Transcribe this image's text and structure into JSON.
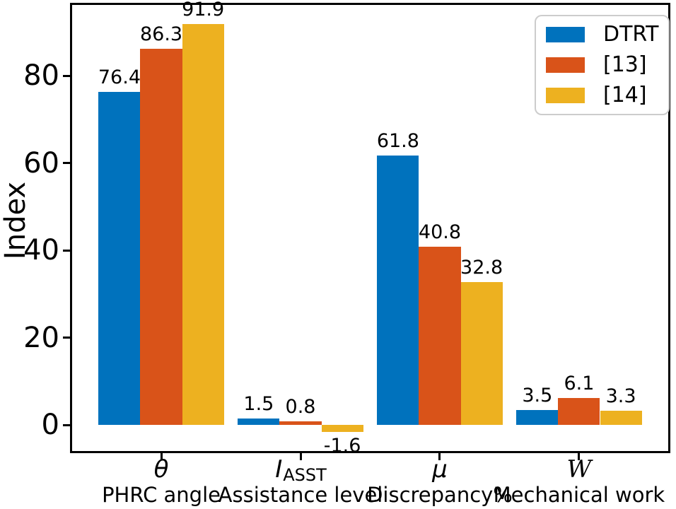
{
  "chart_data": {
    "type": "bar",
    "title": "",
    "ylabel": "Index",
    "xlabel": "",
    "grid": false,
    "legend_position": "upper right",
    "yticks": [
      0,
      20,
      40,
      60,
      80
    ],
    "ylim": [
      -6.3,
      96.6
    ],
    "xlim": [
      -0.65,
      3.65
    ],
    "bar_width": 0.3,
    "categories": [
      {
        "symbol": "θ",
        "label": "PHRC angle"
      },
      {
        "symbol": "I",
        "subscript": "ASST",
        "label": "Assistance level"
      },
      {
        "symbol": "μ",
        "label": "Discrepancy%"
      },
      {
        "symbol": "𝒲",
        "symbol_display": "W",
        "symbol_style": "script",
        "label": "Mechanical work"
      }
    ],
    "series": [
      {
        "name": "DTRT",
        "color": "#0072BD",
        "values": [
          76.4,
          1.5,
          61.8,
          3.5
        ]
      },
      {
        "name": "[13]",
        "color": "#D95319",
        "values": [
          86.3,
          0.8,
          40.8,
          6.1
        ]
      },
      {
        "name": "[14]",
        "color": "#EDB120",
        "values": [
          91.9,
          -1.6,
          32.8,
          3.3
        ]
      }
    ],
    "axis_color": "#000000",
    "legend_border_color": "#cccccc"
  }
}
